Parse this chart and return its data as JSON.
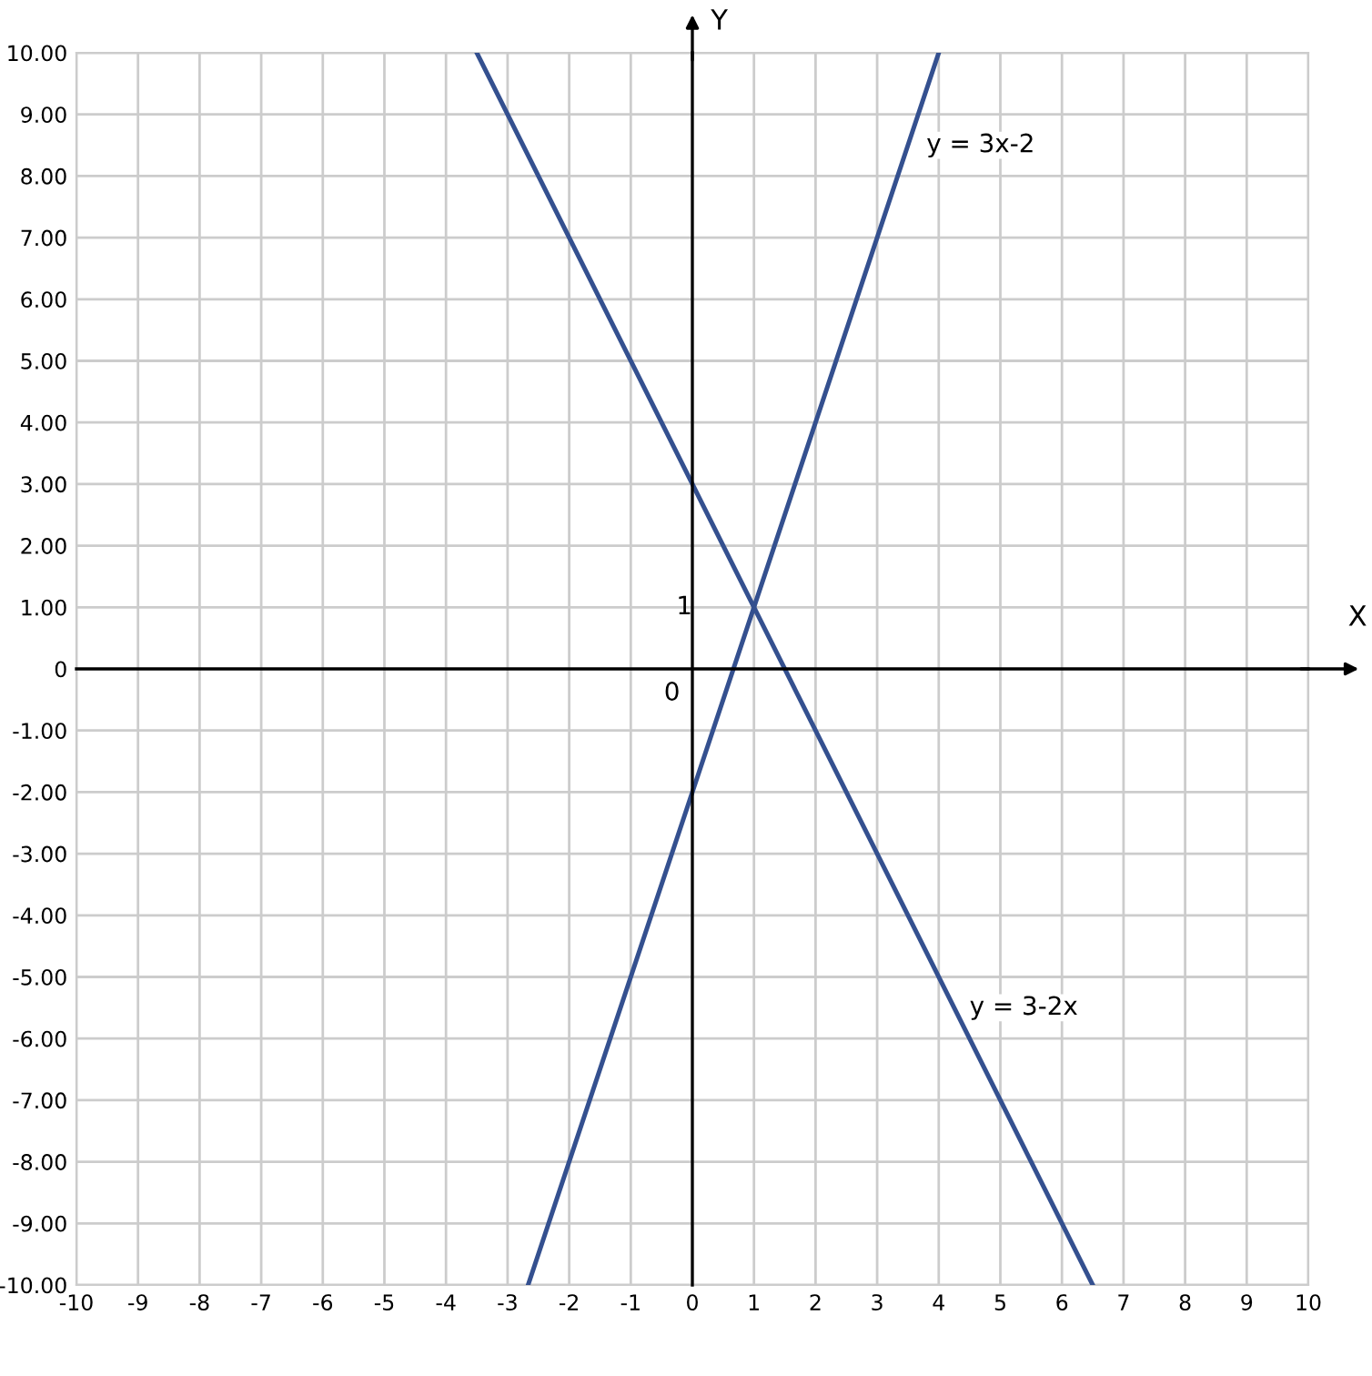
{
  "chart_data": {
    "type": "line",
    "xlabel": "X",
    "ylabel": "Y",
    "series": [
      {
        "color": "#34508f",
        "x": [
          -2.667,
          4
        ],
        "values": [
          -10,
          10
        ]
      },
      {
        "color": "#34508f",
        "x": [
          -3.5,
          6.5
        ],
        "values": [
          10,
          -10
        ]
      }
    ],
    "xlim": [
      -10,
      10
    ],
    "ylim": [
      -10,
      10
    ],
    "xticks": [
      -10,
      -9,
      -8,
      -7,
      -6,
      -5,
      -4,
      -3,
      -2,
      -1,
      0,
      1,
      2,
      3,
      4,
      5,
      6,
      7,
      8,
      9,
      10
    ],
    "yticks": [
      {
        "value": -10,
        "label": "-10.00"
      },
      {
        "value": -9,
        "label": "-9.00"
      },
      {
        "value": -8,
        "label": "-8.00"
      },
      {
        "value": -7,
        "label": "-7.00"
      },
      {
        "value": -6,
        "label": "-6.00"
      },
      {
        "value": -5,
        "label": "-5.00"
      },
      {
        "value": -4,
        "label": "-4.00"
      },
      {
        "value": -3,
        "label": "-3.00"
      },
      {
        "value": -2,
        "label": "-2.00"
      },
      {
        "value": -1,
        "label": "-1.00"
      },
      {
        "value": 0,
        "label": "0"
      },
      {
        "value": 1,
        "label": "1.00"
      },
      {
        "value": 2,
        "label": "2.00"
      },
      {
        "value": 3,
        "label": "3.00"
      },
      {
        "value": 4,
        "label": "4.00"
      },
      {
        "value": 5,
        "label": "5.00"
      },
      {
        "value": 6,
        "label": "6.00"
      },
      {
        "value": 7,
        "label": "7.00"
      },
      {
        "value": 8,
        "label": "8.00"
      },
      {
        "value": 9,
        "label": "9.00"
      },
      {
        "value": 10,
        "label": "10.00"
      }
    ],
    "annotations": [
      "0",
      "1",
      "y = 3x-2",
      "y = 3-2x"
    ],
    "grid": true,
    "marker": "none",
    "line_style": "solid",
    "legend": false
  }
}
